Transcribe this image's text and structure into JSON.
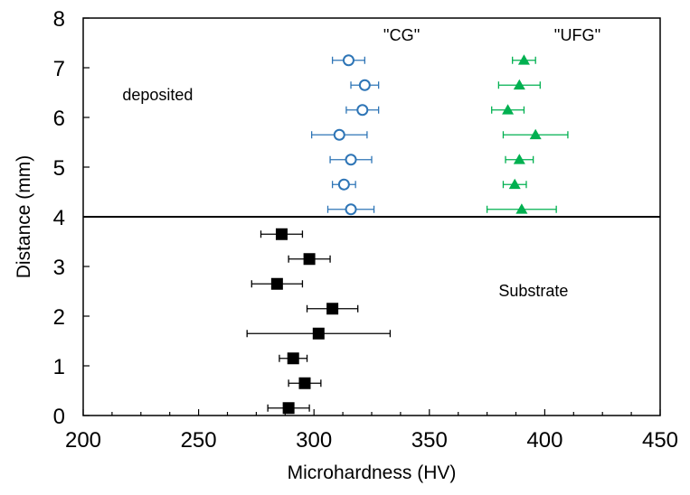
{
  "chart_data": {
    "type": "scatter",
    "xlabel": "Microhardness (HV)",
    "ylabel": "Distance  (mm)",
    "xlim": [
      200,
      450
    ],
    "ylim": [
      0,
      8
    ],
    "xticks": [
      200,
      250,
      300,
      350,
      400,
      450
    ],
    "yticks": [
      0,
      1,
      2,
      3,
      4,
      5,
      6,
      7,
      8
    ],
    "divider_y": 4,
    "annotations": [
      {
        "text": "''CG''",
        "x": 330,
        "y": 7.55
      },
      {
        "text": "''UFG''",
        "x": 404,
        "y": 7.55
      },
      {
        "text": "deposited",
        "x": 217,
        "y": 6.35
      },
      {
        "text": "Substrate",
        "x": 380,
        "y": 2.4
      }
    ],
    "series": [
      {
        "name": "CG",
        "marker": "circle-open",
        "color": "#2e75b6",
        "points": [
          {
            "x": 315,
            "y": 7.15,
            "xerr": 7
          },
          {
            "x": 322,
            "y": 6.65,
            "xerr": 6
          },
          {
            "x": 321,
            "y": 6.15,
            "xerr": 7
          },
          {
            "x": 311,
            "y": 5.65,
            "xerr": 12
          },
          {
            "x": 316,
            "y": 5.15,
            "xerr": 9
          },
          {
            "x": 313,
            "y": 4.65,
            "xerr": 5
          },
          {
            "x": 316,
            "y": 4.15,
            "xerr": 10
          }
        ]
      },
      {
        "name": "UFG",
        "marker": "triangle-filled",
        "color": "#00b050",
        "points": [
          {
            "x": 391,
            "y": 7.15,
            "xerr": 5
          },
          {
            "x": 389,
            "y": 6.65,
            "xerr": 9
          },
          {
            "x": 384,
            "y": 6.15,
            "xerr": 7
          },
          {
            "x": 396,
            "y": 5.65,
            "xerr": 14
          },
          {
            "x": 389,
            "y": 5.15,
            "xerr": 6
          },
          {
            "x": 387,
            "y": 4.65,
            "xerr": 5
          },
          {
            "x": 390,
            "y": 4.15,
            "xerr": 15
          }
        ]
      },
      {
        "name": "Substrate",
        "marker": "square-filled",
        "color": "#000000",
        "points": [
          {
            "x": 286,
            "y": 3.65,
            "xerr": 9
          },
          {
            "x": 298,
            "y": 3.15,
            "xerr": 9
          },
          {
            "x": 284,
            "y": 2.65,
            "xerr": 11
          },
          {
            "x": 308,
            "y": 2.15,
            "xerr": 11
          },
          {
            "x": 302,
            "y": 1.65,
            "xerr": 31
          },
          {
            "x": 291,
            "y": 1.15,
            "xerr": 6
          },
          {
            "x": 296,
            "y": 0.65,
            "xerr": 7
          },
          {
            "x": 289,
            "y": 0.15,
            "xerr": 9
          }
        ]
      }
    ]
  }
}
